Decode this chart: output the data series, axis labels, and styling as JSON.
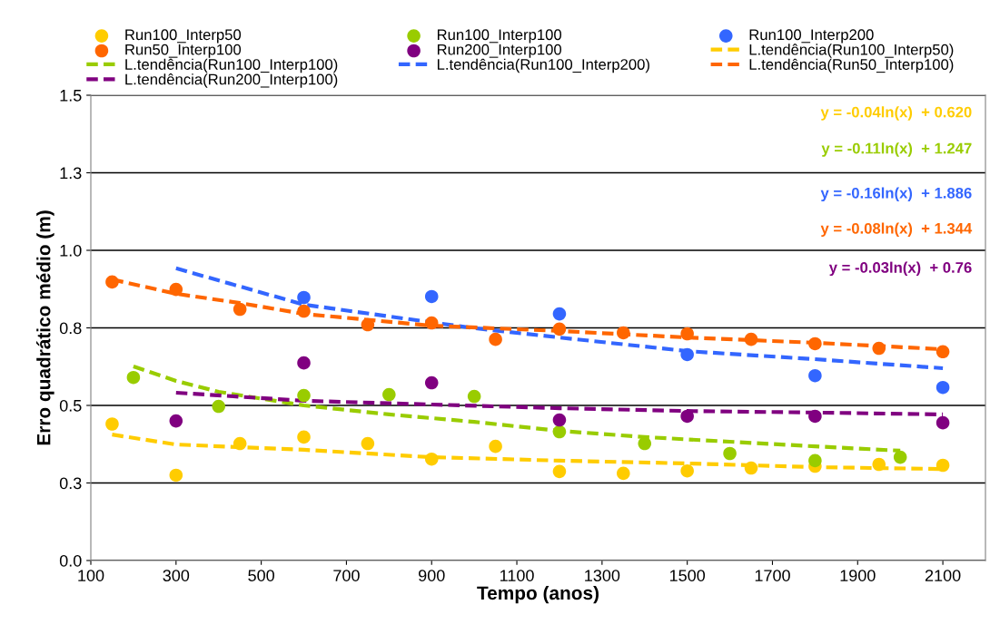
{
  "chart_data": {
    "type": "scatter",
    "xlabel": "Tempo (anos)",
    "ylabel": "Erro quadrático médio (m)",
    "xlim": [
      100,
      2200
    ],
    "xticks": [
      100,
      300,
      500,
      700,
      900,
      1100,
      1300,
      1500,
      1700,
      1900,
      2100
    ],
    "ylim": [
      0,
      1.5
    ],
    "yticks": [
      {
        "value": 0,
        "label": "0.0"
      },
      {
        "value": 0.25,
        "label": "0.3"
      },
      {
        "value": 0.5,
        "label": "0.5"
      },
      {
        "value": 0.75,
        "label": "0.8"
      },
      {
        "value": 1.0,
        "label": "1.0"
      },
      {
        "value": 1.25,
        "label": "1.3"
      },
      {
        "value": 1.5,
        "label": "1.5"
      }
    ],
    "grid": "y",
    "legend": "top",
    "annotations": [
      "y = -0.04ln(x)  + 0.620",
      "y = -0.11ln(x)  + 1.247",
      "y = -0.16ln(x)  + 1.886",
      "y = -0.08ln(x)  + 1.344",
      "y = -0.03ln(x)  + 0.76"
    ],
    "series": [
      {
        "name": "Run100_Interp50",
        "marker": "circle",
        "color": "#ffcc00",
        "x": [
          150,
          300,
          450,
          600,
          750,
          900,
          1050,
          1200,
          1350,
          1500,
          1650,
          1800,
          1950,
          2100
        ],
        "values": [
          0.44,
          0.275,
          0.377,
          0.398,
          0.377,
          0.327,
          0.368,
          0.287,
          0.281,
          0.289,
          0.298,
          0.304,
          0.31,
          0.307
        ]
      },
      {
        "name": "Run100_Interp100",
        "marker": "circle",
        "color": "#99cc00",
        "x": [
          200,
          400,
          600,
          800,
          1000,
          1200,
          1400,
          1600,
          1800,
          2000
        ],
        "values": [
          0.59,
          0.497,
          0.532,
          0.535,
          0.529,
          0.415,
          0.377,
          0.345,
          0.322,
          0.333
        ]
      },
      {
        "name": "Run100_Interp200",
        "marker": "circle",
        "color": "#3366ff",
        "x": [
          600,
          900,
          1200,
          1500,
          1800,
          2100
        ],
        "values": [
          0.848,
          0.851,
          0.795,
          0.664,
          0.596,
          0.558
        ]
      },
      {
        "name": "Run50_Interp100",
        "marker": "circle",
        "color": "#ff6600",
        "x": [
          150,
          300,
          450,
          600,
          750,
          900,
          1050,
          1200,
          1350,
          1500,
          1650,
          1800,
          1950,
          2100
        ],
        "values": [
          0.898,
          0.874,
          0.81,
          0.804,
          0.76,
          0.766,
          0.713,
          0.746,
          0.734,
          0.731,
          0.713,
          0.699,
          0.684,
          0.673
        ]
      },
      {
        "name": "Run200_Interp100",
        "marker": "circle",
        "color": "#800080",
        "x": [
          300,
          600,
          900,
          1200,
          1500,
          1800,
          2100
        ],
        "values": [
          0.45,
          0.637,
          0.573,
          0.453,
          0.465,
          0.465,
          0.444
        ]
      },
      {
        "name": "L.tendência(Run100_Interp50)",
        "type": "line",
        "line_style": "dashed",
        "color": "#ffcc00",
        "x": [
          150,
          300,
          600,
          900,
          1200,
          1500,
          1800,
          2100
        ],
        "values": [
          0.406,
          0.374,
          0.357,
          0.333,
          0.322,
          0.313,
          0.301,
          0.295
        ]
      },
      {
        "name": "L.tendência(Run100_Interp100)",
        "type": "line",
        "line_style": "dashed",
        "color": "#99cc00",
        "x": [
          200,
          300,
          400,
          600,
          800,
          1000,
          1200,
          1400,
          1600,
          1800,
          2000
        ],
        "values": [
          0.626,
          0.579,
          0.544,
          0.5,
          0.471,
          0.447,
          0.418,
          0.398,
          0.383,
          0.368,
          0.354
        ]
      },
      {
        "name": "L.tendência(Run100_Interp200)",
        "type": "line",
        "line_style": "dashed",
        "color": "#3366ff",
        "x": [
          300,
          600,
          1000,
          1200,
          1500,
          1800,
          2100
        ],
        "values": [
          0.942,
          0.825,
          0.749,
          0.719,
          0.675,
          0.649,
          0.62
        ]
      },
      {
        "name": "L.tendência(Run50_Interp100)",
        "type": "line",
        "line_style": "dashed",
        "color": "#ff6600",
        "x": [
          150,
          300,
          450,
          600,
          900,
          1200,
          1500,
          1800,
          2100
        ],
        "values": [
          0.906,
          0.86,
          0.83,
          0.795,
          0.757,
          0.74,
          0.719,
          0.702,
          0.681
        ]
      },
      {
        "name": "L.tendência(Run200_Interp100)",
        "type": "line",
        "line_style": "dashed",
        "color": "#800080",
        "x": [
          300,
          600,
          900,
          1200,
          1500,
          1800,
          2100
        ],
        "values": [
          0.541,
          0.515,
          0.503,
          0.491,
          0.482,
          0.477,
          0.471
        ]
      }
    ]
  }
}
